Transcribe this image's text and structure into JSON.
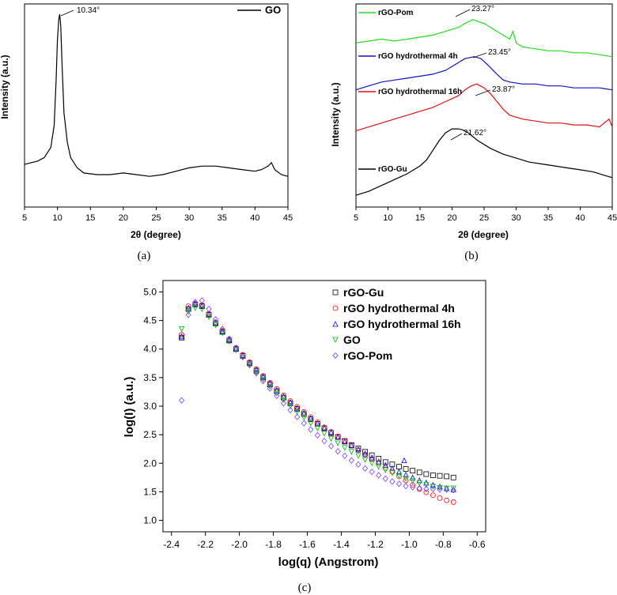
{
  "chart_data": [
    {
      "panel": "(a)",
      "type": "line",
      "xlabel": "2θ (degree)",
      "ylabel": "Intensity (a.u.)",
      "xlim": [
        5,
        45
      ],
      "xticks": [
        "5",
        "10",
        "15",
        "20",
        "25",
        "30",
        "35",
        "40",
        "45"
      ],
      "series": [
        {
          "name": "GO",
          "color": "#000000",
          "peak_annotation": "10.34°",
          "x": [
            5,
            6,
            7,
            8,
            9,
            9.5,
            9.8,
            10.0,
            10.2,
            10.34,
            10.5,
            10.7,
            11.0,
            11.5,
            12,
            13,
            14,
            16,
            18,
            20,
            22,
            24,
            26,
            28,
            30,
            32,
            34,
            36,
            38,
            40,
            41,
            42,
            42.5,
            43,
            44,
            45
          ],
          "y": [
            0.12,
            0.13,
            0.14,
            0.16,
            0.22,
            0.35,
            0.62,
            0.85,
            0.97,
            1.0,
            0.93,
            0.7,
            0.42,
            0.25,
            0.16,
            0.1,
            0.07,
            0.06,
            0.06,
            0.07,
            0.06,
            0.05,
            0.06,
            0.08,
            0.1,
            0.11,
            0.11,
            0.1,
            0.09,
            0.08,
            0.09,
            0.11,
            0.13,
            0.09,
            0.06,
            0.05
          ]
        }
      ]
    },
    {
      "panel": "(b)",
      "type": "line",
      "xlabel": "2θ (degree)",
      "ylabel": "Intensity (a.u.)",
      "xlim": [
        5,
        45
      ],
      "xticks": [
        "5",
        "10",
        "15",
        "20",
        "25",
        "30",
        "35",
        "40",
        "45"
      ],
      "series": [
        {
          "name": "rGO-Pom",
          "color": "#22dd22",
          "peak_annotation": "23.27°",
          "x": [
            5,
            7,
            9,
            11,
            13,
            15,
            17,
            19,
            21,
            22,
            23.27,
            24,
            25,
            26,
            27,
            28,
            29,
            29.5,
            30,
            31,
            33,
            35,
            37,
            39,
            41,
            43,
            45
          ],
          "y": [
            0.8,
            0.81,
            0.82,
            0.81,
            0.82,
            0.83,
            0.84,
            0.86,
            0.88,
            0.9,
            0.92,
            0.91,
            0.9,
            0.88,
            0.86,
            0.84,
            0.82,
            0.86,
            0.8,
            0.78,
            0.77,
            0.76,
            0.76,
            0.75,
            0.75,
            0.74,
            0.73
          ]
        },
        {
          "name": "rGO hydrothermal 4h",
          "color": "#1111cc",
          "peak_annotation": "23.45°",
          "x": [
            5,
            7,
            9,
            11,
            13,
            15,
            17,
            19,
            21,
            22,
            23.45,
            24.5,
            25.5,
            27,
            28,
            29,
            31,
            33,
            35,
            37,
            39,
            41,
            43,
            45
          ],
          "y": [
            0.56,
            0.58,
            0.6,
            0.61,
            0.62,
            0.63,
            0.64,
            0.66,
            0.7,
            0.72,
            0.73,
            0.72,
            0.69,
            0.64,
            0.61,
            0.6,
            0.59,
            0.59,
            0.58,
            0.58,
            0.57,
            0.57,
            0.57,
            0.56
          ]
        },
        {
          "name": "rGO hydrothermal 16h",
          "color": "#dd1111",
          "peak_annotation": "23.87°",
          "x": [
            5,
            7,
            9,
            11,
            13,
            15,
            17,
            19,
            21,
            22,
            23,
            23.87,
            25,
            26,
            27,
            28,
            29,
            31,
            33,
            35,
            37,
            39,
            41,
            43,
            44.5,
            45
          ],
          "y": [
            0.35,
            0.37,
            0.39,
            0.41,
            0.43,
            0.45,
            0.47,
            0.5,
            0.53,
            0.56,
            0.58,
            0.59,
            0.57,
            0.54,
            0.5,
            0.46,
            0.43,
            0.41,
            0.4,
            0.39,
            0.39,
            0.38,
            0.38,
            0.37,
            0.41,
            0.37
          ]
        },
        {
          "name": "rGO-Gu",
          "color": "#000000",
          "peak_annotation": "21.62°",
          "x": [
            5,
            7,
            9,
            11,
            13,
            15,
            16,
            17,
            18,
            19,
            20,
            21,
            21.62,
            22.5,
            24,
            26,
            28,
            30,
            32,
            34,
            36,
            38,
            40,
            42,
            44,
            45
          ],
          "y": [
            0.02,
            0.04,
            0.07,
            0.1,
            0.13,
            0.17,
            0.2,
            0.25,
            0.3,
            0.34,
            0.36,
            0.36,
            0.355,
            0.34,
            0.3,
            0.26,
            0.23,
            0.21,
            0.19,
            0.18,
            0.17,
            0.16,
            0.15,
            0.14,
            0.12,
            0.11
          ]
        }
      ]
    },
    {
      "panel": "(c)",
      "type": "scatter",
      "xlabel": "log(q) (Angstrom)",
      "ylabel": "log(I) (a.u.)",
      "xlim": [
        -2.45,
        -0.55
      ],
      "ylim": [
        0.8,
        5.2
      ],
      "xticks": [
        "-2.4",
        "-2.2",
        "-2.0",
        "-1.8",
        "-1.6",
        "-1.4",
        "-1.2",
        "-1.0",
        "-0.8",
        "-0.6"
      ],
      "yticks": [
        "1.0",
        "1.5",
        "2.0",
        "2.5",
        "3.0",
        "3.5",
        "4.0",
        "4.5",
        "5.0"
      ],
      "series": [
        {
          "name": "rGO-Gu",
          "marker": "square",
          "color": "#000000",
          "x": [
            -2.34,
            -2.3,
            -2.26,
            -2.22,
            -2.18,
            -2.14,
            -2.1,
            -2.06,
            -2.02,
            -1.98,
            -1.94,
            -1.9,
            -1.86,
            -1.82,
            -1.78,
            -1.74,
            -1.7,
            -1.66,
            -1.62,
            -1.58,
            -1.54,
            -1.5,
            -1.46,
            -1.42,
            -1.38,
            -1.34,
            -1.3,
            -1.26,
            -1.22,
            -1.18,
            -1.14,
            -1.1,
            -1.06,
            -1.02,
            -0.98,
            -0.94,
            -0.9,
            -0.86,
            -0.82,
            -0.78,
            -0.74
          ],
          "y": [
            4.2,
            4.7,
            4.78,
            4.75,
            4.6,
            4.45,
            4.3,
            4.15,
            4.0,
            3.88,
            3.75,
            3.62,
            3.5,
            3.38,
            3.26,
            3.15,
            3.05,
            2.95,
            2.86,
            2.77,
            2.69,
            2.61,
            2.53,
            2.46,
            2.39,
            2.32,
            2.26,
            2.2,
            2.14,
            2.08,
            2.02,
            1.98,
            1.94,
            1.9,
            1.87,
            1.84,
            1.81,
            1.79,
            1.78,
            1.77,
            1.75
          ]
        },
        {
          "name": "rGO hydrothermal 4h",
          "marker": "circle",
          "color": "#ff0000",
          "x": [
            -2.34,
            -2.3,
            -2.26,
            -2.22,
            -2.18,
            -2.14,
            -2.1,
            -2.06,
            -2.02,
            -1.98,
            -1.94,
            -1.9,
            -1.86,
            -1.82,
            -1.78,
            -1.74,
            -1.7,
            -1.66,
            -1.62,
            -1.58,
            -1.54,
            -1.5,
            -1.46,
            -1.42,
            -1.38,
            -1.34,
            -1.3,
            -1.26,
            -1.22,
            -1.18,
            -1.14,
            -1.1,
            -1.06,
            -1.02,
            -0.98,
            -0.94,
            -0.9,
            -0.86,
            -0.82,
            -0.78,
            -0.74
          ],
          "y": [
            4.25,
            4.75,
            4.8,
            4.77,
            4.62,
            4.47,
            4.32,
            4.17,
            4.02,
            3.9,
            3.77,
            3.65,
            3.53,
            3.41,
            3.3,
            3.19,
            3.09,
            2.99,
            2.9,
            2.81,
            2.72,
            2.63,
            2.55,
            2.47,
            2.39,
            2.31,
            2.23,
            2.15,
            2.07,
            2.0,
            1.92,
            1.85,
            1.77,
            1.7,
            1.62,
            1.55,
            1.49,
            1.44,
            1.39,
            1.35,
            1.32
          ]
        },
        {
          "name": "rGO hydrothermal 16h",
          "marker": "triangle-up",
          "color": "#0000ff",
          "x": [
            -2.34,
            -2.3,
            -2.26,
            -2.22,
            -2.18,
            -2.14,
            -2.1,
            -2.06,
            -2.02,
            -1.98,
            -1.94,
            -1.9,
            -1.86,
            -1.82,
            -1.78,
            -1.74,
            -1.7,
            -1.66,
            -1.62,
            -1.58,
            -1.54,
            -1.5,
            -1.46,
            -1.42,
            -1.38,
            -1.34,
            -1.3,
            -1.26,
            -1.22,
            -1.18,
            -1.14,
            -1.1,
            -1.06,
            -1.03,
            -1.02,
            -0.98,
            -0.94,
            -0.9,
            -0.86,
            -0.82,
            -0.78,
            -0.74
          ],
          "y": [
            4.22,
            4.72,
            4.79,
            4.76,
            4.61,
            4.46,
            4.31,
            4.16,
            4.01,
            3.89,
            3.76,
            3.64,
            3.52,
            3.4,
            3.28,
            3.17,
            3.07,
            2.97,
            2.88,
            2.79,
            2.7,
            2.62,
            2.54,
            2.46,
            2.38,
            2.31,
            2.24,
            2.17,
            2.1,
            2.03,
            1.97,
            1.91,
            1.85,
            2.05,
            1.8,
            1.75,
            1.7,
            1.66,
            1.62,
            1.59,
            1.56,
            1.54
          ]
        },
        {
          "name": "GO",
          "marker": "triangle-down",
          "color": "#00bb00",
          "x": [
            -2.34,
            -2.3,
            -2.26,
            -2.22,
            -2.18,
            -2.14,
            -2.1,
            -2.06,
            -2.02,
            -1.98,
            -1.94,
            -1.9,
            -1.86,
            -1.82,
            -1.78,
            -1.74,
            -1.7,
            -1.66,
            -1.62,
            -1.58,
            -1.54,
            -1.5,
            -1.46,
            -1.42,
            -1.38,
            -1.34,
            -1.3,
            -1.26,
            -1.22,
            -1.18,
            -1.14,
            -1.1,
            -1.06,
            -1.02,
            -0.98,
            -0.94,
            -0.9,
            -0.86,
            -0.82,
            -0.78,
            -0.74
          ],
          "y": [
            4.35,
            4.65,
            4.72,
            4.7,
            4.56,
            4.42,
            4.28,
            4.13,
            3.98,
            3.85,
            3.72,
            3.59,
            3.46,
            3.34,
            3.22,
            3.11,
            3.0,
            2.9,
            2.8,
            2.7,
            2.61,
            2.52,
            2.43,
            2.35,
            2.27,
            2.2,
            2.13,
            2.06,
            2.0,
            1.94,
            1.88,
            1.83,
            1.78,
            1.73,
            1.69,
            1.65,
            1.62,
            1.59,
            1.57,
            1.56,
            1.56
          ]
        },
        {
          "name": "rGO-Pom",
          "marker": "diamond",
          "color": "#7a3cff",
          "x": [
            -2.34,
            -2.3,
            -2.26,
            -2.22,
            -2.18,
            -2.14,
            -2.1,
            -2.06,
            -2.02,
            -1.98,
            -1.94,
            -1.9,
            -1.86,
            -1.82,
            -1.78,
            -1.74,
            -1.7,
            -1.66,
            -1.62,
            -1.58,
            -1.54,
            -1.5,
            -1.46,
            -1.42,
            -1.38,
            -1.34,
            -1.3,
            -1.26,
            -1.22,
            -1.18,
            -1.14,
            -1.1,
            -1.06,
            -1.02,
            -0.98,
            -0.94,
            -0.9,
            -0.86,
            -0.82,
            -0.78,
            -0.74
          ],
          "y": [
            3.1,
            4.6,
            4.82,
            4.85,
            4.7,
            4.52,
            4.35,
            4.18,
            4.02,
            3.87,
            3.72,
            3.58,
            3.44,
            3.31,
            3.18,
            3.05,
            2.93,
            2.81,
            2.7,
            2.59,
            2.49,
            2.39,
            2.3,
            2.21,
            2.13,
            2.05,
            1.98,
            1.91,
            1.85,
            1.79,
            1.73,
            1.68,
            1.64,
            1.6,
            1.58,
            1.56,
            1.55,
            1.55,
            1.54,
            1.54,
            1.53
          ]
        }
      ]
    }
  ]
}
